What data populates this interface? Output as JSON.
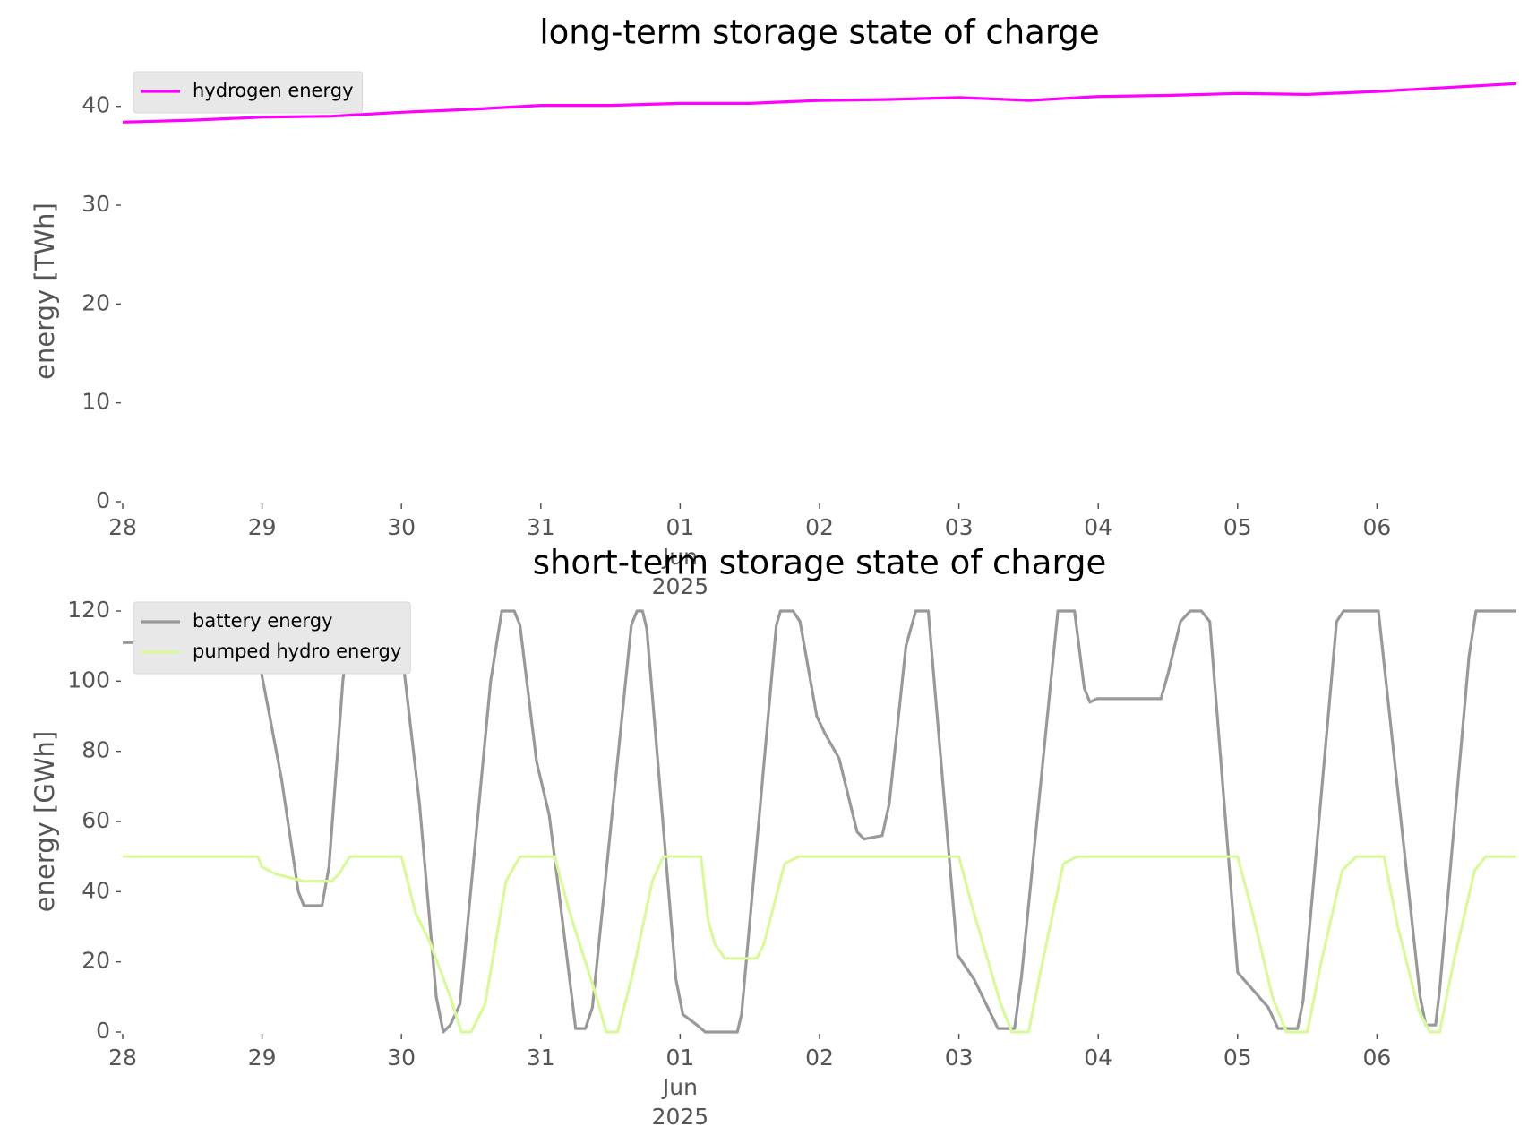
{
  "chart_data": [
    {
      "type": "line",
      "title": "long-term storage state of charge",
      "ylabel": "energy [TWh]",
      "xlim": [
        0,
        10
      ],
      "ylim": [
        0,
        42.6
      ],
      "xticks": [
        {
          "value": 0,
          "label": "28"
        },
        {
          "value": 1,
          "label": "29"
        },
        {
          "value": 2,
          "label": "30"
        },
        {
          "value": 3,
          "label": "31"
        },
        {
          "value": 4,
          "label": "01\nJun\n2025"
        },
        {
          "value": 5,
          "label": "02"
        },
        {
          "value": 6,
          "label": "03"
        },
        {
          "value": 7,
          "label": "04"
        },
        {
          "value": 8,
          "label": "05"
        },
        {
          "value": 9,
          "label": "06"
        }
      ],
      "yticks": [
        0,
        10,
        20,
        30,
        40
      ],
      "legend": "upper left",
      "series": [
        {
          "name": "hydrogen energy",
          "color": "#ff00ff",
          "x": [
            0,
            0.5,
            1,
            1.5,
            2,
            2.5,
            3,
            3.5,
            4,
            4.5,
            5,
            5.5,
            6,
            6.5,
            7,
            7.5,
            8,
            8.5,
            9,
            9.5,
            10
          ],
          "values": [
            38.4,
            38.6,
            38.9,
            39.0,
            39.4,
            39.7,
            40.1,
            40.1,
            40.3,
            40.3,
            40.6,
            40.7,
            40.9,
            40.6,
            41.0,
            41.1,
            41.3,
            41.2,
            41.5,
            41.9,
            42.3
          ]
        }
      ]
    },
    {
      "type": "line",
      "title": "short-term storage state of charge",
      "ylabel": "energy [GWh]",
      "xlim": [
        0,
        10
      ],
      "ylim": [
        0,
        120
      ],
      "xticks": [
        {
          "value": 0,
          "label": "28"
        },
        {
          "value": 1,
          "label": "29"
        },
        {
          "value": 2,
          "label": "30"
        },
        {
          "value": 3,
          "label": "31"
        },
        {
          "value": 4,
          "label": "01\nJun\n2025"
        },
        {
          "value": 5,
          "label": "02"
        },
        {
          "value": 6,
          "label": "03"
        },
        {
          "value": 7,
          "label": "04"
        },
        {
          "value": 8,
          "label": "05"
        },
        {
          "value": 9,
          "label": "06"
        }
      ],
      "yticks": [
        0,
        20,
        40,
        60,
        80,
        100,
        120
      ],
      "legend": "upper left",
      "series": [
        {
          "name": "battery energy",
          "color": "#999999",
          "x": [
            0,
            0.56,
            0.61,
            0.91,
            1.05,
            1.14,
            1.26,
            1.3,
            1.43,
            1.48,
            1.58,
            1.64,
            1.97,
            2.13,
            2.25,
            2.3,
            2.35,
            2.42,
            2.64,
            2.72,
            2.81,
            2.85,
            2.97,
            3.06,
            3.13,
            3.25,
            3.32,
            3.37,
            3.65,
            3.69,
            3.73,
            3.76,
            3.97,
            4.02,
            4.12,
            4.18,
            4.41,
            4.44,
            4.69,
            4.72,
            4.81,
            4.86,
            4.98,
            5.04,
            5.14,
            5.27,
            5.32,
            5.45,
            5.5,
            5.62,
            5.69,
            5.78,
            5.99,
            6.11,
            6.28,
            6.4,
            6.45,
            6.68,
            6.71,
            6.83,
            6.9,
            6.94,
            6.99,
            7.45,
            7.5,
            7.59,
            7.66,
            7.74,
            7.8,
            8.0,
            8.22,
            8.29,
            8.43,
            8.47,
            8.71,
            8.76,
            9.01,
            9.17,
            9.31,
            9.35,
            9.42,
            9.45,
            9.66,
            9.71,
            10
          ],
          "values": [
            111,
            111,
            120,
            120,
            91,
            72,
            40,
            36,
            36,
            47,
            100,
            120,
            120,
            65,
            10,
            0,
            2,
            8,
            100,
            120,
            120,
            116,
            77,
            62,
            40,
            1,
            1,
            7,
            116,
            120,
            120,
            115,
            15,
            5,
            2,
            0,
            0,
            5,
            116,
            120,
            120,
            117,
            90,
            85,
            78,
            57,
            55,
            56,
            65,
            110,
            120,
            120,
            22,
            15,
            1,
            1,
            16,
            108,
            120,
            120,
            98,
            94,
            95,
            95,
            102,
            117,
            120,
            120,
            117,
            17,
            7,
            1,
            1,
            9,
            117,
            120,
            120,
            61,
            10,
            2,
            2,
            12,
            107,
            120,
            120
          ]
        },
        {
          "name": "pumped hydro energy",
          "color": "#d9f99d",
          "x": [
            0,
            0.97,
            1.0,
            1.1,
            1.2,
            1.3,
            1.5,
            1.55,
            1.63,
            2.0,
            2.1,
            2.2,
            2.35,
            2.43,
            2.5,
            2.6,
            2.75,
            2.85,
            3.1,
            3.2,
            3.4,
            3.47,
            3.55,
            3.65,
            3.8,
            3.88,
            4.15,
            4.2,
            4.25,
            4.32,
            4.55,
            4.6,
            4.75,
            4.85,
            6.0,
            6.1,
            6.3,
            6.38,
            6.5,
            6.6,
            6.75,
            6.85,
            8.0,
            8.1,
            8.25,
            8.35,
            8.5,
            8.6,
            8.75,
            8.85,
            9.05,
            9.15,
            9.3,
            9.38,
            9.45,
            9.55,
            9.7,
            9.78,
            10
          ],
          "values": [
            50,
            50,
            47,
            45,
            44,
            43,
            43,
            45,
            50,
            50,
            34,
            26,
            10,
            0,
            0,
            8,
            43,
            50,
            50,
            35,
            10,
            0,
            0,
            15,
            43,
            50,
            50,
            32,
            25,
            21,
            21,
            25,
            48,
            50,
            50,
            35,
            8,
            0,
            0,
            20,
            48,
            50,
            50,
            35,
            10,
            0,
            0,
            20,
            46,
            50,
            50,
            30,
            6,
            0,
            0,
            20,
            46,
            50,
            50
          ]
        }
      ]
    }
  ]
}
